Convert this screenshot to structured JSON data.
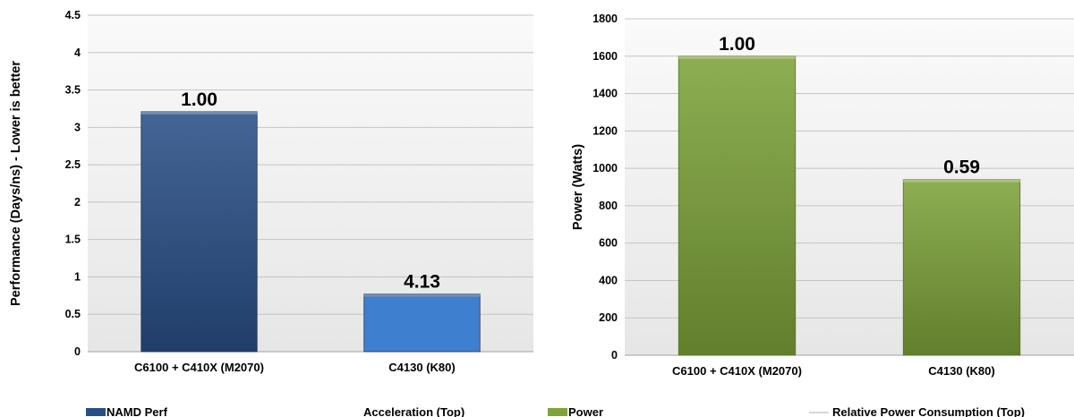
{
  "chart_data": [
    {
      "type": "bar",
      "categories": [
        "C6100 + C410X (M2070)",
        "C4130 (K80)"
      ],
      "series": [
        {
          "name": "NAMD Perf",
          "values": [
            3.21,
            0.77
          ],
          "color": "#2a5088"
        }
      ],
      "data_labels": [
        "1.00",
        "4.13"
      ],
      "ylabel": "Performance (Days/ns) - Lower is better",
      "yticks": [
        "0",
        "0.5",
        "1",
        "1.5",
        "2",
        "2.5",
        "3",
        "3.5",
        "4",
        "4.5"
      ],
      "ylim": [
        0,
        4.5
      ],
      "grid": true,
      "legend": [
        {
          "label": "NAMD Perf",
          "kind": "bar",
          "color": "#2a5088"
        },
        {
          "label": "Acceleration (Top)",
          "kind": "line",
          "color": "#ffffff"
        }
      ],
      "legend_position": "bottom"
    },
    {
      "type": "bar",
      "categories": [
        "C6100 + C410X (M2070)",
        "C4130 (K80)"
      ],
      "series": [
        {
          "name": "Power",
          "values": [
            1600,
            940
          ],
          "color": "#7ea33a"
        }
      ],
      "data_labels": [
        "1.00",
        "0.59"
      ],
      "ylabel": "Power (Watts)",
      "yticks": [
        "0",
        "200",
        "400",
        "600",
        "800",
        "1000",
        "1200",
        "1400",
        "1600",
        "1800"
      ],
      "ylim": [
        0,
        1800
      ],
      "grid": true,
      "legend": [
        {
          "label": "Power",
          "kind": "bar",
          "color": "#7ea33a"
        },
        {
          "label": "Relative Power Consumption (Top)",
          "kind": "line",
          "color": "#bfbfbf"
        }
      ],
      "legend_position": "bottom"
    }
  ]
}
